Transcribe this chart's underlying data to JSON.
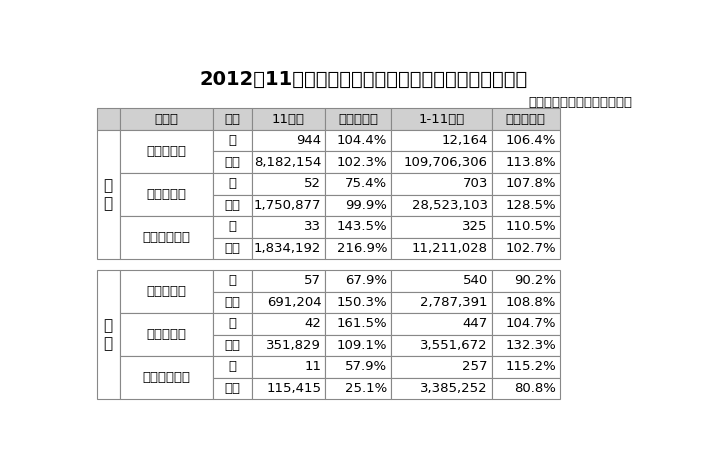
{
  "title": "2012年11月のプラスチック、ゴム加工機械輸出入実績",
  "subtitle": "日本プラスチック機械工業会",
  "sections": [
    {
      "label": "輸\n出",
      "rows": [
        {
          "machine": "射出成形機",
          "data": [
            [
              "台",
              "944",
              "104.4%",
              "12,164",
              "106.4%"
            ],
            [
              "千円",
              "8,182,154",
              "102.3%",
              "109,706,306",
              "113.8%"
            ]
          ]
        },
        {
          "machine": "押出成形機",
          "data": [
            [
              "台",
              "52",
              "75.4%",
              "703",
              "107.8%"
            ],
            [
              "千円",
              "1,750,877",
              "99.9%",
              "28,523,103",
              "128.5%"
            ]
          ]
        },
        {
          "machine": "ブロー成形機",
          "data": [
            [
              "台",
              "33",
              "143.5%",
              "325",
              "110.5%"
            ],
            [
              "千円",
              "1,834,192",
              "216.9%",
              "11,211,028",
              "102.7%"
            ]
          ]
        }
      ]
    },
    {
      "label": "輸\n入",
      "rows": [
        {
          "machine": "射出成形機",
          "data": [
            [
              "台",
              "57",
              "67.9%",
              "540",
              "90.2%"
            ],
            [
              "千円",
              "691,204",
              "150.3%",
              "2,787,391",
              "108.8%"
            ]
          ]
        },
        {
          "machine": "押出成形機",
          "data": [
            [
              "台",
              "42",
              "161.5%",
              "447",
              "104.7%"
            ],
            [
              "千円",
              "351,829",
              "109.1%",
              "3,551,672",
              "132.3%"
            ]
          ]
        },
        {
          "machine": "ブロー成形機",
          "data": [
            [
              "台",
              "11",
              "57.9%",
              "257",
              "115.2%"
            ],
            [
              "千円",
              "115,415",
              "25.1%",
              "3,385,252",
              "80.8%"
            ]
          ]
        }
      ]
    }
  ],
  "bg_color": "#ffffff",
  "header_bg": "#d0d0d0",
  "line_color": "#888888",
  "text_color": "#000000",
  "title_fontsize": 14,
  "subtitle_fontsize": 9.5,
  "header_fontsize": 9.5,
  "cell_fontsize": 9.5,
  "label_fontsize": 11
}
